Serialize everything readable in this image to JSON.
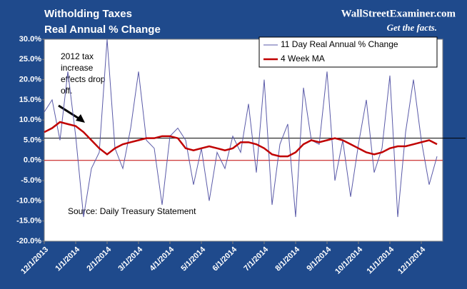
{
  "chart_data": {
    "type": "line",
    "title": "Witholding Taxes",
    "subtitle": "Real Annual % Change",
    "watermark": "WallStreetExaminer.com",
    "tagline": "Get the facts.",
    "annotation": [
      "2012 tax",
      "increase",
      "effects drop",
      "off."
    ],
    "source": "Source: Daily Treasury Statement",
    "categories": [
      "12/1/2013",
      null,
      null,
      null,
      "1/1/2014",
      null,
      null,
      null,
      "2/1/2014",
      null,
      null,
      null,
      "3/1/2014",
      null,
      null,
      null,
      "4/1/2014",
      null,
      null,
      null,
      "5/1/2014",
      null,
      null,
      null,
      "6/1/2014",
      null,
      null,
      null,
      "7/1/2014",
      null,
      null,
      null,
      "8/1/2014",
      null,
      null,
      null,
      "9/1/2014",
      null,
      null,
      null,
      "10/1/2014",
      null,
      null,
      null,
      "11/1/2014",
      null,
      null,
      null,
      "12/1/2014",
      null,
      null
    ],
    "series": [
      {
        "name": "11 Day Real Annual % Change",
        "color": "#5a5aa8",
        "width": 1,
        "values": [
          12,
          15,
          5,
          22,
          6,
          -14,
          -2,
          2,
          30,
          3,
          -2,
          8,
          22,
          5,
          3,
          -11,
          6,
          8,
          5,
          -6,
          3,
          -10,
          2,
          -2,
          6,
          2,
          14,
          -3,
          20,
          -11,
          4,
          9,
          -14,
          18,
          5,
          4,
          22,
          -5,
          5,
          -9,
          4,
          15,
          -3,
          3,
          21,
          -14,
          7,
          20,
          5,
          -6,
          1
        ]
      },
      {
        "name": "4 Week MA",
        "color": "#c00000",
        "width": 2.5,
        "values": [
          7,
          8,
          9.5,
          9,
          8.5,
          7,
          5,
          3,
          1.5,
          3,
          4,
          4.5,
          5,
          5.5,
          5.5,
          6,
          6,
          5.5,
          3,
          2.5,
          3,
          3.5,
          3,
          2.5,
          3,
          4.5,
          4.5,
          4,
          3,
          1.5,
          1,
          1,
          2,
          4,
          5,
          4.5,
          5,
          5.5,
          5,
          4,
          3,
          2,
          1.5,
          2,
          3,
          3.5,
          3.5,
          4,
          4.5,
          5,
          4
        ]
      }
    ],
    "ylim": [
      -20,
      30
    ],
    "yticks": [
      {
        "value": -20,
        "label": "-20.0%"
      },
      {
        "value": -15,
        "label": "-15.0%"
      },
      {
        "value": -10,
        "label": "-10.0%"
      },
      {
        "value": -5,
        "label": "-5.0%"
      },
      {
        "value": 0,
        "label": "0.0%"
      },
      {
        "value": 5,
        "label": "5.0%"
      },
      {
        "value": 10,
        "label": "10.0%"
      },
      {
        "value": 15,
        "label": "15.0%"
      },
      {
        "value": 20,
        "label": "20.0%"
      },
      {
        "value": 25,
        "label": "25.0%"
      },
      {
        "value": 30,
        "label": "30.0%"
      }
    ],
    "hlines": [
      {
        "value": 0,
        "color": "#c00000"
      },
      {
        "value": 5.5,
        "color": "#000000"
      }
    ],
    "legend": "upper right",
    "grid": false
  }
}
